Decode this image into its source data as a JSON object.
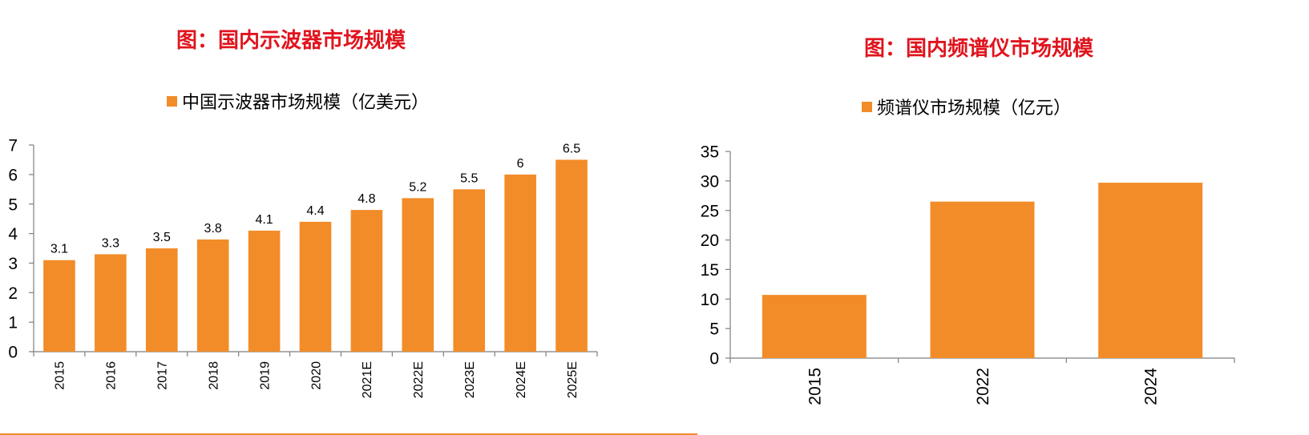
{
  "colors": {
    "bar": "#f28c28",
    "title": "#e0141e",
    "axis": "#7f7f7f"
  },
  "chart_data": [
    {
      "type": "bar",
      "title": "图：国内示波器市场规模",
      "legend": "中国示波器市场规模（亿美元）",
      "categories": [
        "2015",
        "2016",
        "2017",
        "2018",
        "2019",
        "2020",
        "2021E",
        "2022E",
        "2023E",
        "2024E",
        "2025E"
      ],
      "series": [
        {
          "name": "中国示波器市场规模（亿美元）",
          "values": [
            3.1,
            3.3,
            3.5,
            3.8,
            4.1,
            4.4,
            4.8,
            5.2,
            5.5,
            6,
            6.5
          ]
        }
      ],
      "data_labels": [
        "3.1",
        "3.3",
        "3.5",
        "3.8",
        "4.1",
        "4.4",
        "4.8",
        "5.2",
        "5.5",
        "6",
        "6.5"
      ],
      "yticks": [
        "0",
        "1",
        "2",
        "3",
        "4",
        "5",
        "6",
        "7"
      ],
      "ylim": [
        0,
        7
      ],
      "legend_position": "top-center",
      "grid": false
    },
    {
      "type": "bar",
      "title": "图：国内频谱仪市场规模",
      "legend": "频谱仪市场规模（亿元）",
      "categories": [
        "2015",
        "2022",
        "2024"
      ],
      "series": [
        {
          "name": "频谱仪市场规模（亿元）",
          "values": [
            10.7,
            26.5,
            29.7
          ]
        }
      ],
      "yticks": [
        "0",
        "5",
        "10",
        "15",
        "20",
        "25",
        "30",
        "35"
      ],
      "ylim": [
        0,
        35
      ],
      "legend_position": "top-center",
      "grid": false
    }
  ]
}
